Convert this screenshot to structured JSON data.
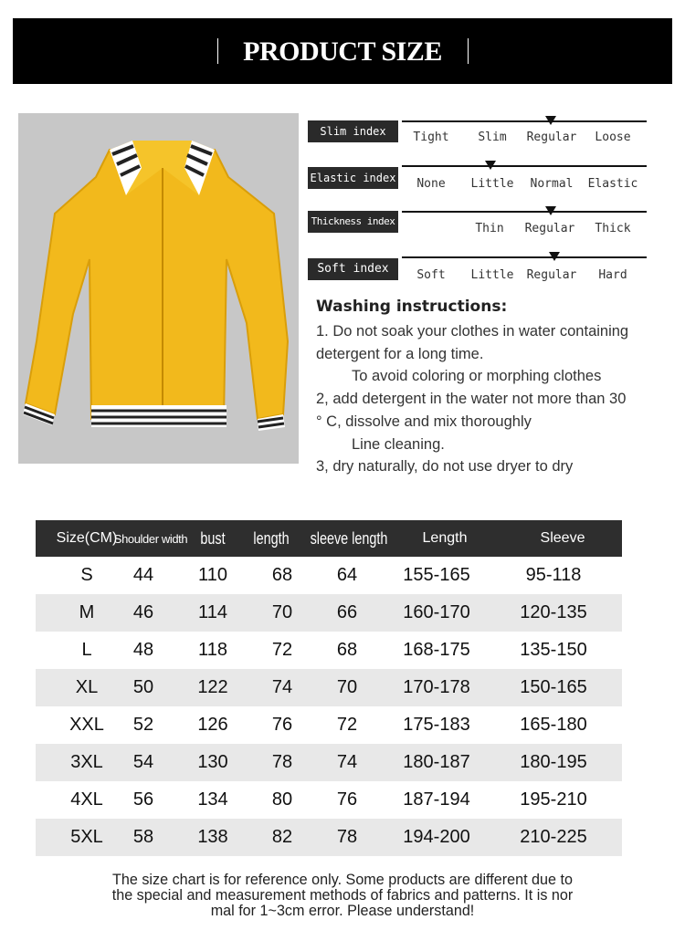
{
  "header": {
    "title": "PRODUCT SIZE"
  },
  "indices": [
    {
      "label": "Slim index",
      "options": [
        "Tight",
        "Slim",
        "Regular",
        "Loose"
      ],
      "selected": "Regular"
    },
    {
      "label": "Elastic index",
      "options": [
        "None",
        "Little",
        "Normal",
        "Elastic"
      ],
      "selected": "Little"
    },
    {
      "label": "Thickness index",
      "options": [
        "",
        "Thin",
        "Regular",
        "Thick"
      ],
      "selected": "Regular"
    },
    {
      "label": "Soft index",
      "options": [
        "Soft",
        "Little",
        "Regular",
        "Hard"
      ],
      "selected": "Regular"
    }
  ],
  "washing": {
    "title": "Washing instructions:",
    "lines": [
      "1. Do not soak your clothes in water containing",
      "detergent for a long time.",
      "To avoid coloring or morphing clothes",
      "2, add detergent in the water not more than 30",
      "° C, dissolve and mix thoroughly",
      "Line cleaning.",
      "3, dry naturally, do not use dryer to dry"
    ]
  },
  "colors": {
    "jacket": "#f2b91c",
    "header_bg": "#000000",
    "table_header": "#2e2e2e",
    "row_alt": "#e8e8e8"
  },
  "table": {
    "headers": [
      "Size(CM)",
      "Shoulder width",
      "bust",
      "length",
      "sleeve length",
      "Length",
      "Sleeve"
    ],
    "rows": [
      [
        "S",
        "44",
        "110",
        "68",
        "64",
        "155-165",
        "95-118"
      ],
      [
        "M",
        "46",
        "114",
        "70",
        "66",
        "160-170",
        "120-135"
      ],
      [
        "L",
        "48",
        "118",
        "72",
        "68",
        "168-175",
        "135-150"
      ],
      [
        "XL",
        "50",
        "122",
        "74",
        "70",
        "170-178",
        "150-165"
      ],
      [
        "XXL",
        "52",
        "126",
        "76",
        "72",
        "175-183",
        "165-180"
      ],
      [
        "3XL",
        "54",
        "130",
        "78",
        "74",
        "180-187",
        "180-195"
      ],
      [
        "4XL",
        "56",
        "134",
        "80",
        "76",
        "187-194",
        "195-210"
      ],
      [
        "5XL",
        "58",
        "138",
        "82",
        "78",
        "194-200",
        "210-225"
      ]
    ]
  },
  "note": [
    "The size chart is for reference only. Some products are different due to",
    "the special and measurement methods of fabrics and patterns. It is nor",
    "mal for 1~3cm error. Please understand!"
  ]
}
